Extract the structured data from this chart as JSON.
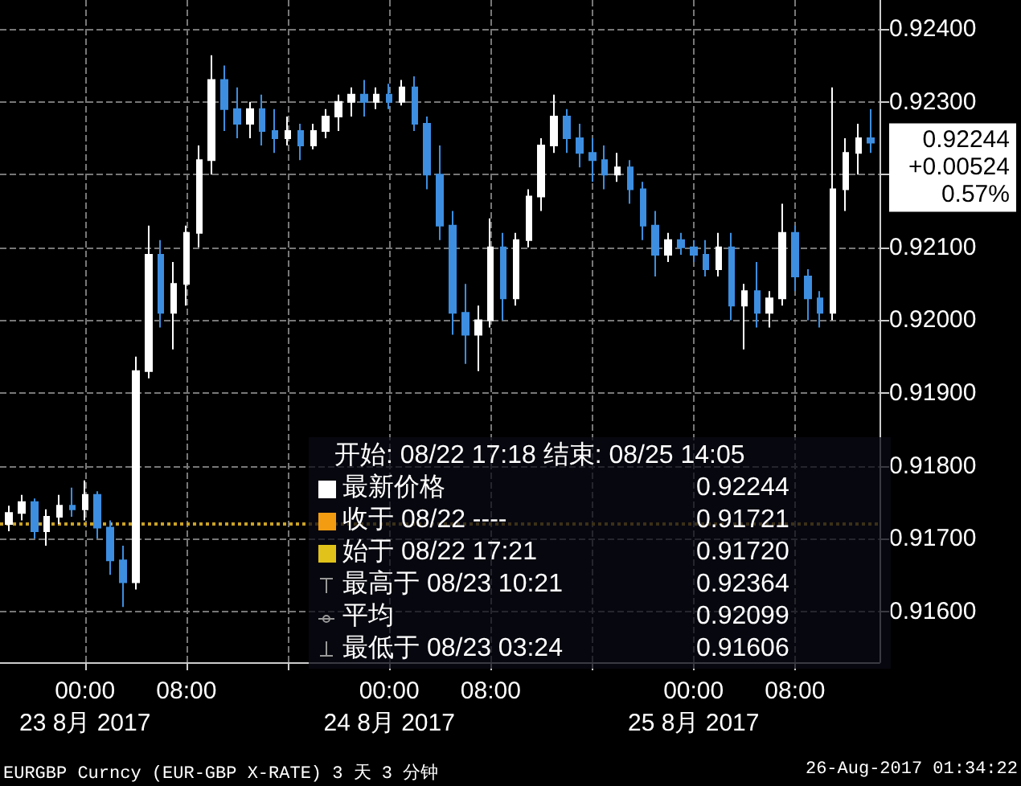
{
  "chart_data": {
    "type": "candlestick",
    "grid": true,
    "xlim": [
      "2017-08-22T17:18",
      "2017-08-25T14:40"
    ],
    "xticks": [
      {
        "value": "2017-08-23T00:00",
        "label": "00:00\n23 8月 2017"
      },
      {
        "value": "2017-08-23T08:00",
        "label": "08:00"
      },
      {
        "value": "2017-08-23T16:00",
        "label": null
      },
      {
        "value": "2017-08-24T00:00",
        "label": "00:00\n24 8月 2017"
      },
      {
        "value": "2017-08-24T08:00",
        "label": "08:00"
      },
      {
        "value": "2017-08-24T16:00",
        "label": null
      },
      {
        "value": "2017-08-25T00:00",
        "label": "00:00\n25 8月 2017"
      },
      {
        "value": "2017-08-25T08:00",
        "label": "08:00"
      }
    ],
    "ylim": [
      0.9153,
      0.9244
    ],
    "yticks": [
      {
        "value": 0.916,
        "label": "0.91600"
      },
      {
        "value": 0.917,
        "label": "0.91700"
      },
      {
        "value": 0.918,
        "label": "0.91800"
      },
      {
        "value": 0.919,
        "label": "0.91900"
      },
      {
        "value": 0.92,
        "label": "0.92000"
      },
      {
        "value": 0.921,
        "label": "0.92100"
      },
      {
        "value": 0.922,
        "label": null
      },
      {
        "value": 0.923,
        "label": "0.92300"
      },
      {
        "value": 0.924,
        "label": "0.92400"
      }
    ],
    "ref_lines": [
      {
        "axis": "y",
        "value": 0.9172,
        "color": "#c9a227",
        "line_style": "dotted"
      }
    ],
    "series": [
      {
        "colors": [
          "#ffffff",
          "#ffffff",
          "#3d8ee0",
          "#ffffff",
          "#ffffff",
          "#3d8ee0",
          "#ffffff",
          "#3d8ee0",
          "#3d8ee0",
          "#3d8ee0",
          "#ffffff",
          "#ffffff",
          "#3d8ee0",
          "#ffffff",
          "#ffffff",
          "#ffffff",
          "#ffffff",
          "#3d8ee0",
          "#3d8ee0",
          "#ffffff",
          "#3d8ee0",
          "#3d8ee0",
          "#ffffff",
          "#3d8ee0",
          "#ffffff",
          "#ffffff",
          "#ffffff",
          "#ffffff",
          "#3d8ee0",
          "#ffffff",
          "#3d8ee0",
          "#ffffff",
          "#3d8ee0",
          "#3d8ee0",
          "#3d8ee0",
          "#3d8ee0",
          "#3d8ee0",
          "#ffffff",
          "#ffffff",
          "#3d8ee0",
          "#ffffff",
          "#ffffff",
          "#ffffff",
          "#ffffff",
          "#3d8ee0",
          "#3d8ee0",
          "#3d8ee0",
          "#3d8ee0",
          "#ffffff",
          "#3d8ee0",
          "#3d8ee0",
          "#3d8ee0",
          "#ffffff",
          "#3d8ee0",
          "#3d8ee0",
          "#3d8ee0",
          "#ffffff",
          "#3d8ee0",
          "#ffffff",
          "#3d8ee0",
          "#ffffff",
          "#ffffff",
          "#3d8ee0",
          "#3d8ee0",
          "#3d8ee0",
          "#ffffff",
          "#ffffff",
          "#ffffff",
          "#3d8ee0"
        ],
        "x": [
          "2017-08-22T18:00",
          "2017-08-22T19:00",
          "2017-08-22T20:00",
          "2017-08-22T21:00",
          "2017-08-22T22:00",
          "2017-08-22T23:00",
          "2017-08-23T00:00",
          "2017-08-23T01:00",
          "2017-08-23T02:00",
          "2017-08-23T03:00",
          "2017-08-23T04:00",
          "2017-08-23T05:00",
          "2017-08-23T06:00",
          "2017-08-23T07:00",
          "2017-08-23T08:00",
          "2017-08-23T09:00",
          "2017-08-23T10:00",
          "2017-08-23T11:00",
          "2017-08-23T12:00",
          "2017-08-23T13:00",
          "2017-08-23T14:00",
          "2017-08-23T15:00",
          "2017-08-23T16:00",
          "2017-08-23T17:00",
          "2017-08-23T18:00",
          "2017-08-23T19:00",
          "2017-08-23T20:00",
          "2017-08-23T21:00",
          "2017-08-23T22:00",
          "2017-08-23T23:00",
          "2017-08-24T00:00",
          "2017-08-24T01:00",
          "2017-08-24T02:00",
          "2017-08-24T03:00",
          "2017-08-24T04:00",
          "2017-08-24T05:00",
          "2017-08-24T06:00",
          "2017-08-24T07:00",
          "2017-08-24T08:00",
          "2017-08-24T09:00",
          "2017-08-24T10:00",
          "2017-08-24T11:00",
          "2017-08-24T12:00",
          "2017-08-24T13:00",
          "2017-08-24T14:00",
          "2017-08-24T15:00",
          "2017-08-24T16:00",
          "2017-08-24T17:00",
          "2017-08-24T18:00",
          "2017-08-24T19:00",
          "2017-08-24T20:00",
          "2017-08-24T21:00",
          "2017-08-24T22:00",
          "2017-08-24T23:00",
          "2017-08-25T00:00",
          "2017-08-25T01:00",
          "2017-08-25T02:00",
          "2017-08-25T03:00",
          "2017-08-25T04:00",
          "2017-08-25T05:00",
          "2017-08-25T06:00",
          "2017-08-25T07:00",
          "2017-08-25T08:00",
          "2017-08-25T09:00",
          "2017-08-25T10:00",
          "2017-08-25T11:00",
          "2017-08-25T12:00",
          "2017-08-25T13:00",
          "2017-08-25T14:00"
        ],
        "ohlc": [
          [
            0.9172,
            0.91745,
            0.9171,
            0.91735
          ],
          [
            0.91735,
            0.9176,
            0.91725,
            0.9175
          ],
          [
            0.9175,
            0.91755,
            0.917,
            0.9171
          ],
          [
            0.9171,
            0.9174,
            0.9169,
            0.9173
          ],
          [
            0.9173,
            0.9176,
            0.9172,
            0.91745
          ],
          [
            0.91745,
            0.9177,
            0.9173,
            0.9174
          ],
          [
            0.9174,
            0.9178,
            0.91725,
            0.9176
          ],
          [
            0.9176,
            0.91765,
            0.917,
            0.91715
          ],
          [
            0.91715,
            0.91725,
            0.9165,
            0.9167
          ],
          [
            0.9167,
            0.9169,
            0.91606,
            0.9164
          ],
          [
            0.9164,
            0.9195,
            0.9163,
            0.9193
          ],
          [
            0.9193,
            0.9213,
            0.9192,
            0.9209
          ],
          [
            0.9209,
            0.9211,
            0.9199,
            0.9201
          ],
          [
            0.9201,
            0.9208,
            0.9196,
            0.9205
          ],
          [
            0.9205,
            0.9213,
            0.9202,
            0.9212
          ],
          [
            0.9212,
            0.9224,
            0.921,
            0.9222
          ],
          [
            0.9222,
            0.92364,
            0.922,
            0.9233
          ],
          [
            0.9233,
            0.9235,
            0.9226,
            0.9229
          ],
          [
            0.9229,
            0.9232,
            0.9225,
            0.9227
          ],
          [
            0.9227,
            0.923,
            0.9225,
            0.9229
          ],
          [
            0.9229,
            0.9231,
            0.9224,
            0.9226
          ],
          [
            0.9226,
            0.9229,
            0.9223,
            0.9225
          ],
          [
            0.9225,
            0.9228,
            0.9224,
            0.9226
          ],
          [
            0.9226,
            0.9227,
            0.9222,
            0.9224
          ],
          [
            0.9224,
            0.9227,
            0.92235,
            0.9226
          ],
          [
            0.9226,
            0.9229,
            0.9225,
            0.9228
          ],
          [
            0.9228,
            0.9231,
            0.9226,
            0.923
          ],
          [
            0.923,
            0.9232,
            0.9228,
            0.9231
          ],
          [
            0.9231,
            0.9233,
            0.9228,
            0.923
          ],
          [
            0.923,
            0.9232,
            0.9229,
            0.9231
          ],
          [
            0.9231,
            0.92325,
            0.9229,
            0.923
          ],
          [
            0.923,
            0.9233,
            0.92295,
            0.9232
          ],
          [
            0.9232,
            0.92335,
            0.9226,
            0.9227
          ],
          [
            0.9227,
            0.9228,
            0.9218,
            0.922
          ],
          [
            0.922,
            0.9224,
            0.9211,
            0.9213
          ],
          [
            0.9213,
            0.9215,
            0.9198,
            0.9201
          ],
          [
            0.9201,
            0.9205,
            0.9194,
            0.9198
          ],
          [
            0.9198,
            0.9202,
            0.9193,
            0.92
          ],
          [
            0.92,
            0.9214,
            0.9199,
            0.921
          ],
          [
            0.921,
            0.9212,
            0.92,
            0.9203
          ],
          [
            0.9203,
            0.9212,
            0.9202,
            0.9211
          ],
          [
            0.9211,
            0.9218,
            0.921,
            0.9217
          ],
          [
            0.9217,
            0.9225,
            0.9215,
            0.9224
          ],
          [
            0.9224,
            0.9231,
            0.9223,
            0.9228
          ],
          [
            0.9228,
            0.9229,
            0.9223,
            0.9225
          ],
          [
            0.9225,
            0.9227,
            0.9221,
            0.9223
          ],
          [
            0.9223,
            0.9225,
            0.9219,
            0.9222
          ],
          [
            0.9222,
            0.9224,
            0.9218,
            0.922
          ],
          [
            0.922,
            0.9223,
            0.9219,
            0.9221
          ],
          [
            0.9221,
            0.9222,
            0.9216,
            0.9218
          ],
          [
            0.9218,
            0.9219,
            0.9211,
            0.9213
          ],
          [
            0.9213,
            0.9215,
            0.9206,
            0.9209
          ],
          [
            0.9209,
            0.9212,
            0.9208,
            0.9211
          ],
          [
            0.9211,
            0.9212,
            0.9209,
            0.921
          ],
          [
            0.921,
            0.9211,
            0.9208,
            0.9209
          ],
          [
            0.9209,
            0.9211,
            0.9206,
            0.9207
          ],
          [
            0.9207,
            0.9212,
            0.9206,
            0.921
          ],
          [
            0.921,
            0.9212,
            0.92,
            0.9202
          ],
          [
            0.9202,
            0.9205,
            0.9196,
            0.9204
          ],
          [
            0.9204,
            0.9208,
            0.9199,
            0.9201
          ],
          [
            0.9201,
            0.9204,
            0.9199,
            0.9203
          ],
          [
            0.9203,
            0.9216,
            0.9202,
            0.9212
          ],
          [
            0.9212,
            0.9213,
            0.9204,
            0.9206
          ],
          [
            0.9206,
            0.9207,
            0.92,
            0.9203
          ],
          [
            0.9203,
            0.9204,
            0.9199,
            0.9201
          ],
          [
            0.9201,
            0.9232,
            0.92,
            0.9218
          ],
          [
            0.9218,
            0.9225,
            0.9215,
            0.9223
          ],
          [
            0.9223,
            0.9227,
            0.922,
            0.9225
          ],
          [
            0.9225,
            0.9229,
            0.9223,
            0.92244
          ]
        ]
      }
    ],
    "annotations": [
      "开始: 08/22 17:18 结束: 08/25 14:05",
      "最新价格",
      "0.92244",
      "收于 08/22 ----",
      "0.91721",
      "始于 08/22 17:21",
      "0.91720",
      "最高于 08/23 10:21",
      "0.92364",
      "平均",
      "0.92099",
      "最低于 08/23 03:24",
      "0.91606",
      {
        "text": "0.92244\n+0.00524\n0.57%",
        "x": "2017-08-25T14:00",
        "y": 0.92244
      },
      "EURGBP Curncy (EUR-GBP X-RATE) 3 天 3 分钟",
      "26-Aug-2017 01:34:22"
    ]
  }
}
